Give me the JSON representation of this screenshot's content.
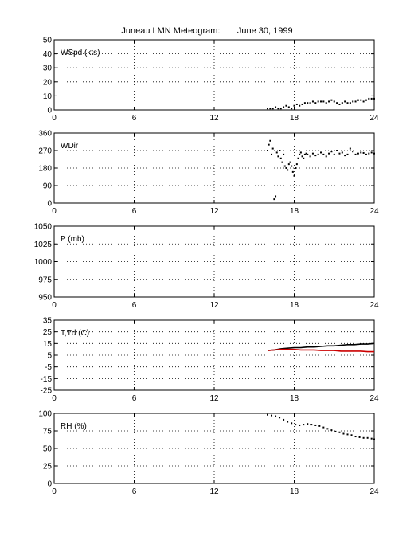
{
  "title": "Juneau LMN Meteogram:       June 30, 1999",
  "chart_data": [
    {
      "type": "scatter",
      "ylabel": "WSpd (kts)",
      "xlim": [
        0,
        24
      ],
      "ylim": [
        0,
        50
      ],
      "xticks": [
        0,
        6,
        12,
        18,
        24
      ],
      "yticks": [
        0,
        10,
        20,
        30,
        40,
        50
      ],
      "grid": true,
      "series": [
        {
          "color": "#000000",
          "x": [
            16.0,
            16.2,
            16.4,
            16.6,
            16.8,
            17.0,
            17.2,
            17.4,
            17.6,
            17.8,
            18.0,
            18.2,
            18.4,
            18.6,
            18.8,
            19.0,
            19.2,
            19.4,
            19.6,
            19.8,
            20.0,
            20.2,
            20.4,
            20.6,
            20.8,
            21.0,
            21.2,
            21.4,
            21.6,
            21.8,
            22.0,
            22.2,
            22.4,
            22.6,
            22.8,
            23.0,
            23.2,
            23.4,
            23.6,
            23.8,
            24.0
          ],
          "values": [
            1,
            1,
            1,
            2,
            1,
            1,
            2,
            3,
            2,
            1,
            3,
            4,
            3,
            4,
            5,
            5,
            5,
            6,
            5,
            6,
            6,
            6,
            5,
            6,
            7,
            6,
            5,
            4,
            5,
            6,
            5,
            5,
            6,
            6,
            7,
            7,
            6,
            7,
            8,
            8,
            8
          ]
        }
      ]
    },
    {
      "type": "scatter",
      "ylabel": "WDir",
      "xlim": [
        0,
        24
      ],
      "ylim": [
        0,
        360
      ],
      "xticks": [
        0,
        6,
        12,
        18,
        24
      ],
      "yticks": [
        0,
        90,
        180,
        270,
        360
      ],
      "grid": true,
      "series": [
        {
          "color": "#000000",
          "x": [
            16.0,
            16.1,
            16.2,
            16.3,
            16.4,
            16.5,
            16.6,
            16.7,
            16.8,
            16.9,
            17.0,
            17.1,
            17.2,
            17.3,
            17.4,
            17.5,
            17.6,
            17.7,
            17.8,
            17.9,
            18.0,
            18.1,
            18.2,
            18.3,
            18.4,
            18.5,
            18.6,
            18.7,
            18.8,
            18.9,
            19.0,
            19.2,
            19.4,
            19.6,
            19.8,
            20.0,
            20.2,
            20.4,
            20.6,
            20.8,
            21.0,
            21.2,
            21.4,
            21.6,
            21.8,
            22.0,
            22.2,
            22.4,
            22.6,
            22.8,
            23.0,
            23.2,
            23.4,
            23.6,
            23.8,
            24.0
          ],
          "values": [
            270,
            300,
            320,
            250,
            280,
            20,
            35,
            260,
            240,
            270,
            230,
            210,
            250,
            190,
            180,
            170,
            200,
            210,
            190,
            160,
            140,
            180,
            200,
            230,
            250,
            260,
            240,
            230,
            250,
            255,
            250,
            240,
            255,
            245,
            250,
            260,
            250,
            240,
            255,
            265,
            250,
            270,
            255,
            260,
            245,
            250,
            280,
            265,
            250,
            255,
            260,
            258,
            250,
            255,
            260,
            255
          ]
        }
      ]
    },
    {
      "type": "scatter",
      "ylabel": "P (mb)",
      "xlim": [
        0,
        24
      ],
      "ylim": [
        950,
        1050
      ],
      "xticks": [
        0,
        6,
        12,
        18,
        24
      ],
      "yticks": [
        950,
        975,
        1000,
        1025,
        1050
      ],
      "grid": true,
      "series": []
    },
    {
      "type": "line",
      "ylabel": "T,Td (C)",
      "xlim": [
        0,
        24
      ],
      "ylim": [
        -25,
        35
      ],
      "xticks": [
        0,
        6,
        12,
        18,
        24
      ],
      "yticks": [
        -25,
        -15,
        -5,
        5,
        15,
        25,
        35
      ],
      "grid": true,
      "series": [
        {
          "color": "#000000",
          "x": [
            16.0,
            16.5,
            17.0,
            17.5,
            18.0,
            18.5,
            19.0,
            19.5,
            20.0,
            20.5,
            21.0,
            21.5,
            22.0,
            22.5,
            23.0,
            23.5,
            24.0
          ],
          "values": [
            9,
            9.5,
            10.5,
            11,
            11.5,
            11.5,
            12,
            12,
            12.5,
            13,
            13,
            13.5,
            14,
            14,
            14.5,
            14.5,
            15
          ]
        },
        {
          "color": "#cc0000",
          "x": [
            16.0,
            16.5,
            17.0,
            17.5,
            18.0,
            18.5,
            19.0,
            19.5,
            20.0,
            20.5,
            21.0,
            21.5,
            22.0,
            22.5,
            23.0,
            23.5,
            24.0
          ],
          "values": [
            9,
            9.5,
            10,
            10,
            10,
            9.5,
            9.5,
            9.5,
            9,
            9,
            9,
            8.5,
            8.5,
            8.5,
            8.5,
            8,
            8
          ]
        }
      ]
    },
    {
      "type": "scatter",
      "ylabel": "RH (%)",
      "xlim": [
        0,
        24
      ],
      "ylim": [
        0,
        100
      ],
      "xticks": [
        0,
        6,
        12,
        18,
        24
      ],
      "yticks": [
        0,
        25,
        50,
        75,
        100
      ],
      "grid": true,
      "series": [
        {
          "color": "#000000",
          "x": [
            16.0,
            16.3,
            16.6,
            16.9,
            17.2,
            17.5,
            17.8,
            18.1,
            18.4,
            18.7,
            19.0,
            19.3,
            19.6,
            19.9,
            20.2,
            20.5,
            20.8,
            21.1,
            21.4,
            21.7,
            22.0,
            22.3,
            22.6,
            22.9,
            23.2,
            23.5,
            23.8,
            24.0
          ],
          "values": [
            98,
            97,
            96,
            94,
            91,
            88,
            86,
            84,
            83,
            84,
            85,
            84,
            83,
            82,
            80,
            78,
            76,
            74,
            73,
            71,
            70,
            69,
            67,
            66,
            65,
            65,
            64,
            63
          ]
        }
      ]
    }
  ]
}
